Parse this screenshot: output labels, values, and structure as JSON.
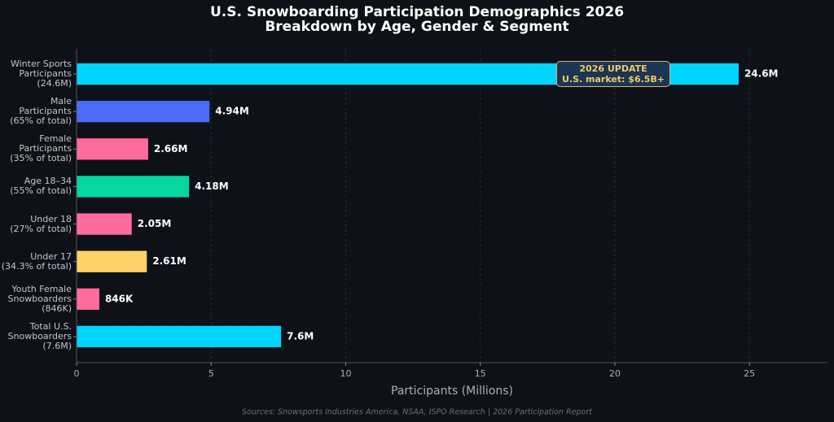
{
  "chart_data": {
    "type": "bar",
    "orientation": "horizontal",
    "title": "U.S. Snowboarding Participation Demographics 2026",
    "subtitle": "Breakdown by Age, Gender & Segment",
    "categories": [
      "Winter Sports\nParticipants\n(24.6M)",
      "Male\nParticipants\n(65% of total)",
      "Female\nParticipants\n(35% of total)",
      "Age 18–34\n(55% of total)",
      "Under 18\n(27% of total)",
      "Under 17\n(34.3% of total)",
      "Youth Female\nSnowboarders\n(846K)",
      "Total U.S.\nSnowboarders\n(7.6M)"
    ],
    "values": [
      24.6,
      4.94,
      2.66,
      4.18,
      2.05,
      2.61,
      0.846,
      7.6
    ],
    "value_labels": [
      "24.6M",
      "4.94M",
      "2.66M",
      "4.18M",
      "2.05M",
      "2.61M",
      "846K",
      "7.6M"
    ],
    "colors": [
      "#00d4ff",
      "#4a6cf7",
      "#ff6b9d",
      "#06d6a0",
      "#ff6b9d",
      "#ffd166",
      "#ff6b9d",
      "#00d4ff"
    ],
    "xlabel": "Participants (Millions)",
    "xlim": [
      0,
      27.9
    ],
    "xticks": [
      0,
      5,
      10,
      15,
      20,
      25
    ],
    "grid": true,
    "annotation": "2026 UPDATE\nU.S. market: $6.5B+",
    "source": "Sources: Snowsports Industries America, NSAA, ISPO Research | 2026 Participation Report"
  }
}
